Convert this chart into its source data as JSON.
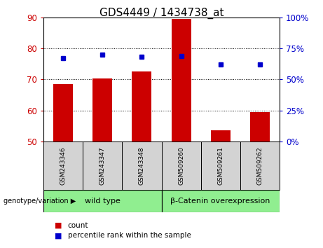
{
  "title": "GDS4449 / 1434738_at",
  "samples": [
    "GSM243346",
    "GSM243347",
    "GSM243348",
    "GSM509260",
    "GSM509261",
    "GSM509262"
  ],
  "bar_values": [
    68.5,
    70.2,
    72.5,
    89.5,
    53.5,
    59.5
  ],
  "bar_bottom": 50,
  "percentile_values": [
    67,
    70,
    68,
    69,
    62,
    62
  ],
  "bar_color": "#cc0000",
  "percentile_color": "#0000cc",
  "ylim_left": [
    50,
    90
  ],
  "ylim_right": [
    0,
    100
  ],
  "yticks_left": [
    50,
    60,
    70,
    80,
    90
  ],
  "yticks_right": [
    0,
    25,
    50,
    75,
    100
  ],
  "grid_lines": [
    60,
    70,
    80
  ],
  "groups": [
    {
      "label": "wild type",
      "start": 0,
      "end": 3,
      "color": "#90ee90"
    },
    {
      "label": "β-Catenin overexpression",
      "start": 3,
      "end": 6,
      "color": "#90ee90"
    }
  ],
  "group_label_prefix": "genotype/variation",
  "legend_count_label": "count",
  "legend_percentile_label": "percentile rank within the sample",
  "bar_color_label": "#cc0000",
  "percentile_color_label": "#0000cc",
  "background_color": "#ffffff",
  "tick_label_area_color": "#d3d3d3",
  "title_fontsize": 11,
  "label_fontsize": 8,
  "tick_fontsize": 8.5,
  "sample_fontsize": 6.5
}
